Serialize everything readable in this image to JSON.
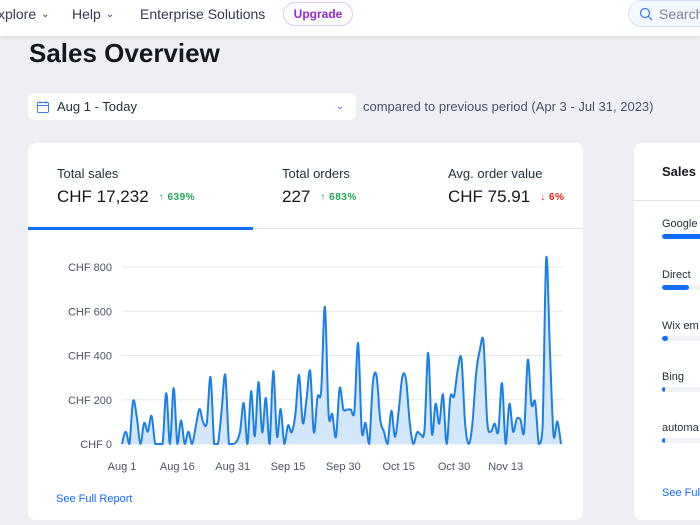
{
  "topnav": {
    "items": [
      {
        "label": "xplore",
        "dropdown": true
      },
      {
        "label": "Help",
        "dropdown": true
      },
      {
        "label": "Enterprise Solutions",
        "dropdown": false
      }
    ],
    "upgrade": "Upgrade",
    "search_placeholder": "Search"
  },
  "page_title": "Sales Overview",
  "date_range": {
    "value": "Aug 1 - Today",
    "comparison": "compared to previous period (Apr 3 - Jul 31, 2023)"
  },
  "kpis": [
    {
      "label": "Total sales",
      "value": "CHF 17,232",
      "delta": "639%",
      "direction": "up",
      "selected": true
    },
    {
      "label": "Total orders",
      "value": "227",
      "delta": "683%",
      "direction": "up",
      "selected": false
    },
    {
      "label": "Avg. order value",
      "value": "CHF 75.91",
      "delta": "6%",
      "direction": "down",
      "selected": false
    }
  ],
  "colors": {
    "accent": "#116dff",
    "line": "#1b7fe6",
    "area": "#d4e6fb",
    "up": "#25a55a",
    "down": "#e62214",
    "upgrade": "#9a27d5"
  },
  "chart_data": {
    "type": "area",
    "y_ticks": [
      "CHF 0",
      "CHF 200",
      "CHF 400",
      "CHF 600",
      "CHF 800"
    ],
    "ylim": [
      0,
      800
    ],
    "x_ticks": [
      "Aug 1",
      "Aug 16",
      "Aug 31",
      "Sep 15",
      "Sep 30",
      "Oct 15",
      "Oct 30",
      "Nov 13"
    ],
    "grid": true,
    "values": [
      0,
      56,
      0,
      194,
      123,
      0,
      95,
      56,
      127,
      0,
      0,
      0,
      230,
      0,
      253,
      0,
      107,
      0,
      56,
      0,
      80,
      158,
      98,
      98,
      302,
      0,
      0,
      150,
      312,
      0,
      0,
      10,
      56,
      185,
      0,
      239,
      35,
      280,
      53,
      208,
      0,
      330,
      35,
      158,
      0,
      84,
      53,
      135,
      312,
      95,
      200,
      330,
      53,
      212,
      242,
      620,
      135,
      135,
      32,
      253,
      158,
      156,
      156,
      150,
      456,
      56,
      95,
      0,
      275,
      308,
      110,
      56,
      0,
      150,
      32,
      150,
      305,
      290,
      95,
      0,
      53,
      43,
      65,
      412,
      47,
      182,
      92,
      223,
      0,
      212,
      216,
      335,
      385,
      95,
      0,
      95,
      320,
      425,
      460,
      102,
      56,
      92,
      56,
      275,
      0,
      182,
      56,
      113,
      110,
      56,
      380,
      178,
      190,
      0,
      72,
      840,
      420,
      35,
      102,
      0
    ]
  },
  "see_full_report": "See Full Report",
  "sales_by": {
    "title": "Sales",
    "items": [
      {
        "label": "Google",
        "share": 1.0
      },
      {
        "label": "Direct",
        "share": 0.45
      },
      {
        "label": "Wix em",
        "share": 0.1
      },
      {
        "label": "Bing",
        "share": 0.03
      },
      {
        "label": "automa",
        "share": 0.03
      }
    ],
    "link": "See Ful"
  }
}
